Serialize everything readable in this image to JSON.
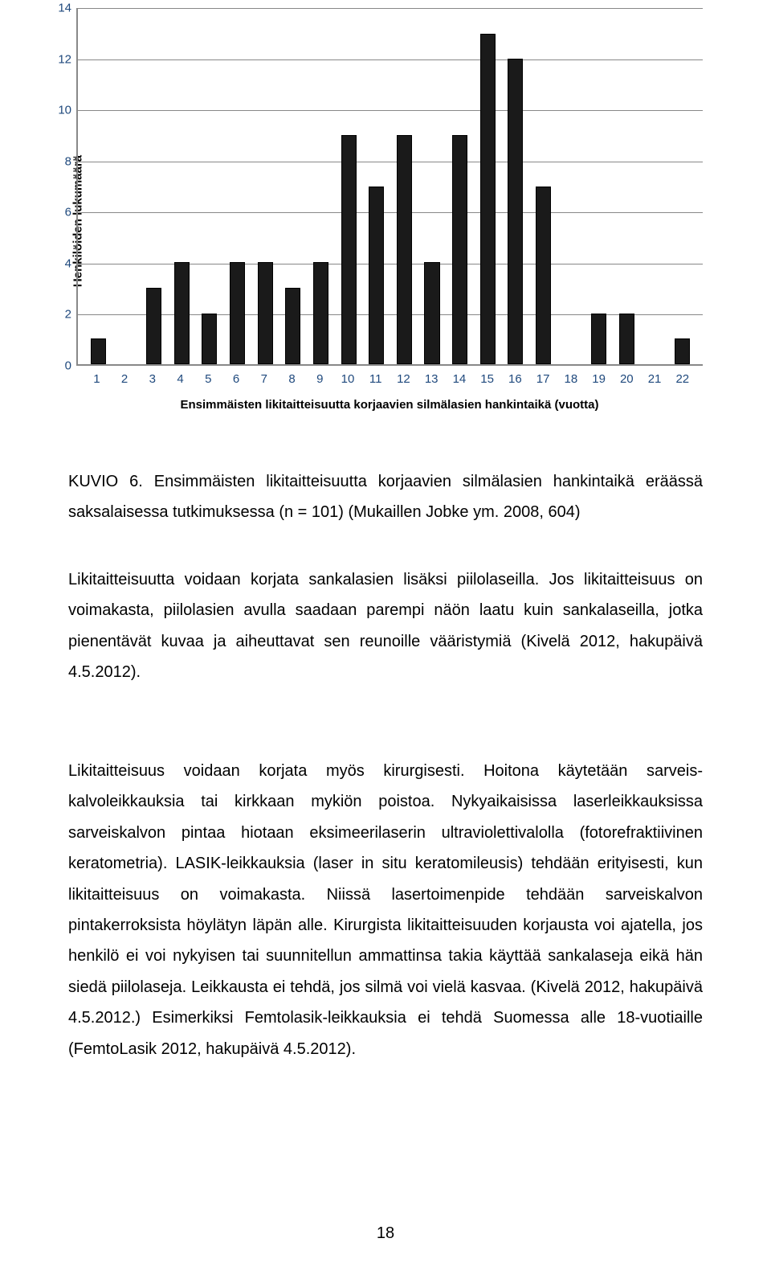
{
  "chart": {
    "type": "bar",
    "y_axis_label": "Henkilöiden lukumäärä",
    "x_axis_label": "Ensimmäisten likitaitteisuutta korjaavien silmälasien hankintaikä (vuotta)",
    "categories": [
      "1",
      "2",
      "3",
      "4",
      "5",
      "6",
      "7",
      "8",
      "9",
      "10",
      "11",
      "12",
      "13",
      "14",
      "15",
      "16",
      "17",
      "18",
      "19",
      "20",
      "21",
      "22"
    ],
    "values": [
      1,
      0,
      3,
      4,
      2,
      4,
      4,
      3,
      4,
      9,
      7,
      9,
      4,
      9,
      13,
      12,
      7,
      0,
      2,
      2,
      0,
      1
    ],
    "y_ticks": [
      0,
      2,
      4,
      6,
      8,
      10,
      12,
      14
    ],
    "ylim_max": 14,
    "bar_color": "#1a1a1a",
    "grid_color": "#888888",
    "tick_label_color": "#1f497d",
    "axis_label_fontsize": 15,
    "tick_fontsize": 15,
    "background_color": "#ffffff"
  },
  "caption": "KUVIO 6. Ensimmäisten likitaitteisuutta korjaavien silmälasien hankintaikä eräässä saksalaisessa tutkimuksessa (n = 101) (Mukaillen Jobke ym. 2008, 604)",
  "para1": "Likitaitteisuutta voidaan korjata sankalasien lisäksi piilolaseilla. Jos likitaitteisuus on voimakasta, piilolasien avulla saadaan parempi näön laatu kuin sankalaseilla, jotka pienentävät kuvaa ja aiheuttavat sen reunoille vääristymiä (Kivelä 2012, hakupäivä 4.5.2012).",
  "para2": "Likitaitteisuus voidaan korjata myös kirurgisesti. Hoitona käytetään sarveis-kalvoleikkauksia tai kirkkaan mykiön poistoa. Nykyaikaisissa laserleikkauksissa sarveiskalvon pintaa hiotaan eksimeerilaserin ultraviolettivalolla (fotorefraktiivinen keratometria). LASIK-leikkauksia (laser in situ keratomileusis) tehdään erityisesti, kun likitaitteisuus on voimakasta. Niissä lasertoimenpide tehdään sarveiskalvon pintakerroksista höylätyn läpän alle. Kirurgista likitaitteisuuden korjausta voi ajatella, jos henkilö ei voi nykyisen tai suunnitellun ammattinsa takia käyttää sankalaseja eikä hän siedä piilolaseja. Leikkausta ei tehdä, jos silmä voi vielä kasvaa. (Kivelä 2012, hakupäivä 4.5.2012.) Esimerkiksi Femtolasik-leikkauksia ei tehdä Suomessa alle 18-vuotiaille (FemtoLasik 2012, hakupäivä 4.5.2012).",
  "page_number": "18"
}
